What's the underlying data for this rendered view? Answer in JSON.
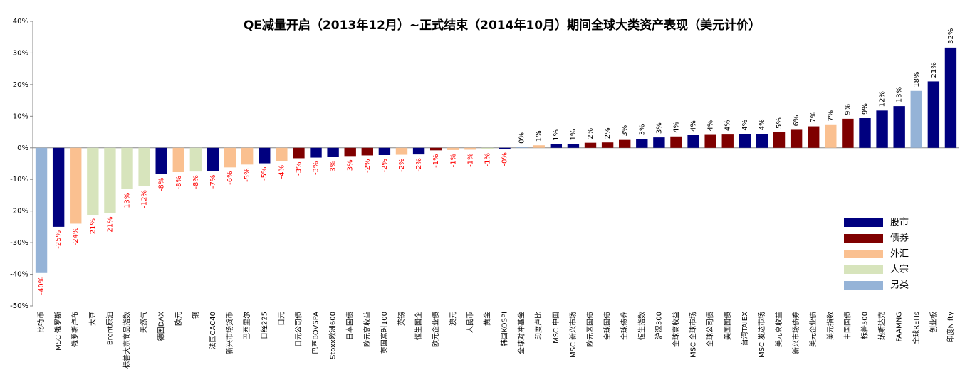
{
  "chart_data": {
    "type": "bar",
    "title": "QE减量开启（2013年12月）~正式结束（2014年10月）期间全球大类资产表现（美元计价）",
    "categories": [
      "比特币",
      "MSCI俄罗斯",
      "俄罗斯卢布",
      "大豆",
      "Brent原油",
      "标普大宗商品指数",
      "天然气",
      "德国DAX",
      "欧元",
      "铜",
      "法国CAC40",
      "新兴市场货币",
      "巴西里尔",
      "日经225",
      "日元",
      "日元公司债",
      "巴西BOVSPA",
      "Stoxx欧洲600",
      "日本国债",
      "欧元高收益",
      "英国富时100",
      "英镑",
      "恒生国企",
      "欧元企业债",
      "澳元",
      "人民币",
      "黄金",
      "韩国KOSPI",
      "全球对冲基金",
      "印度卢比",
      "MSCI中国",
      "MSCI新兴市场",
      "欧元区国债",
      "全球国债",
      "全球债券",
      "恒生指数",
      "沪深300",
      "全球高收益",
      "MSCI全球市场",
      "全球公司债",
      "美国国债",
      "台湾TAIEX",
      "MSCI发达市场",
      "美元高收益",
      "新兴市场债券",
      "美元企业债",
      "美元指数",
      "中国国债",
      "标普500",
      "纳斯达克",
      "FAAMNG",
      "全球REITs",
      "创业板",
      "印度Nifty"
    ],
    "values": [
      -39.6,
      -25,
      -24,
      -21.2,
      -20.6,
      -13,
      -12.2,
      -8.3,
      -7.7,
      -7.5,
      -7.4,
      -6.2,
      -5.3,
      -4.9,
      -4.3,
      -3.3,
      -3.1,
      -2.9,
      -2.6,
      -2.4,
      -2.3,
      -2.2,
      -2.1,
      -0.8,
      -0.7,
      -0.6,
      -0.5,
      -0.3,
      0.2,
      0.8,
      1.1,
      1.2,
      1.6,
      1.7,
      2.5,
      2.8,
      3.3,
      3.6,
      4.0,
      4.1,
      4.2,
      4.3,
      4.4,
      4.9,
      5.7,
      6.8,
      7.2,
      9.2,
      9.4,
      11.8,
      13.2,
      18.0,
      21.0,
      31.7
    ],
    "value_labels": [
      "-40%",
      "-25%",
      "-24%",
      "-21%",
      "-21%",
      "-13%",
      "-12%",
      "-8%",
      "-8%",
      "-8%",
      "-7%",
      "-6%",
      "-5%",
      "-5%",
      "-4%",
      "-3%",
      "-3%",
      "-3%",
      "-3%",
      "-2%",
      "-2%",
      "-2%",
      "-2%",
      "-1%",
      "-1%",
      "-1%",
      "-1%",
      "-0%",
      "0%",
      "1%",
      "1%",
      "1%",
      "2%",
      "2%",
      "3%",
      "3%",
      "3%",
      "4%",
      "4%",
      "4%",
      "4%",
      "4%",
      "4%",
      "5%",
      "6%",
      "7%",
      "7%",
      "9%",
      "9%",
      "12%",
      "13%",
      "18%",
      "21%",
      "32%"
    ],
    "colors": [
      "#95b3d7",
      "#00007f",
      "#fac090",
      "#d7e4bc",
      "#d7e4bc",
      "#d7e4bc",
      "#d7e4bc",
      "#00007f",
      "#fac090",
      "#d7e4bc",
      "#00007f",
      "#fac090",
      "#fac090",
      "#00007f",
      "#fac090",
      "#7f0000",
      "#00007f",
      "#00007f",
      "#7f0000",
      "#7f0000",
      "#00007f",
      "#fac090",
      "#00007f",
      "#7f0000",
      "#fac090",
      "#fac090",
      "#d7e4bc",
      "#00007f",
      "#95b3d7",
      "#fac090",
      "#00007f",
      "#00007f",
      "#7f0000",
      "#7f0000",
      "#7f0000",
      "#00007f",
      "#00007f",
      "#7f0000",
      "#00007f",
      "#7f0000",
      "#7f0000",
      "#00007f",
      "#00007f",
      "#7f0000",
      "#7f0000",
      "#7f0000",
      "#fac090",
      "#7f0000",
      "#00007f",
      "#00007f",
      "#00007f",
      "#95b3d7",
      "#00007f",
      "#00007f"
    ],
    "negative_label_color": "#ff0000",
    "legend": [
      {
        "name": "股市",
        "color": "#00007f"
      },
      {
        "name": "债券",
        "color": "#7f0000"
      },
      {
        "name": "外汇",
        "color": "#fac090"
      },
      {
        "name": "大宗",
        "color": "#d7e4bc"
      },
      {
        "name": "另类",
        "color": "#95b3d7"
      }
    ],
    "ylim": [
      -50,
      40
    ],
    "yticks": [
      {
        "value": -50,
        "label": "-50%"
      },
      {
        "value": -40,
        "label": "-40%"
      },
      {
        "value": -30,
        "label": "-30%"
      },
      {
        "value": -20,
        "label": "-20%"
      },
      {
        "value": -10,
        "label": "-10%"
      },
      {
        "value": 0,
        "label": "0%"
      },
      {
        "value": 10,
        "label": "10%"
      },
      {
        "value": 20,
        "label": "20%"
      },
      {
        "value": 30,
        "label": "30%"
      },
      {
        "value": 40,
        "label": "40%"
      }
    ]
  }
}
